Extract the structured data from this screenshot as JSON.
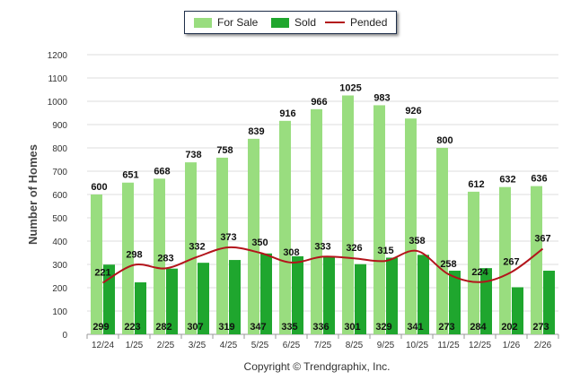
{
  "chart_data": {
    "type": "bar",
    "ylabel": "Number of Homes",
    "xlabel": "",
    "ylim": [
      0,
      1200
    ],
    "yticks": [
      0,
      100,
      200,
      300,
      400,
      500,
      600,
      700,
      800,
      900,
      1000,
      1100,
      1200
    ],
    "grid": true,
    "legend_position": "top-center",
    "categories": [
      "12/24",
      "1/25",
      "2/25",
      "3/25",
      "4/25",
      "5/25",
      "6/25",
      "7/25",
      "8/25",
      "9/25",
      "10/25",
      "11/25",
      "12/25",
      "1/26",
      "2/26"
    ],
    "series": [
      {
        "name": "For Sale",
        "kind": "bar",
        "color": "#99dd7f",
        "values": [
          600,
          651,
          668,
          738,
          758,
          839,
          916,
          966,
          1025,
          983,
          926,
          800,
          612,
          632,
          636
        ]
      },
      {
        "name": "Sold",
        "kind": "bar",
        "color": "#1fa62e",
        "values": [
          299,
          223,
          282,
          307,
          319,
          347,
          335,
          336,
          301,
          329,
          341,
          273,
          284,
          202,
          273
        ]
      },
      {
        "name": "Pended",
        "kind": "line",
        "color": "#b3141b",
        "values": [
          221,
          298,
          283,
          332,
          373,
          350,
          308,
          333,
          326,
          315,
          358,
          258,
          224,
          267,
          367
        ]
      }
    ]
  },
  "footer": {
    "copyright": "Copyright © Trendgraphix, Inc."
  }
}
